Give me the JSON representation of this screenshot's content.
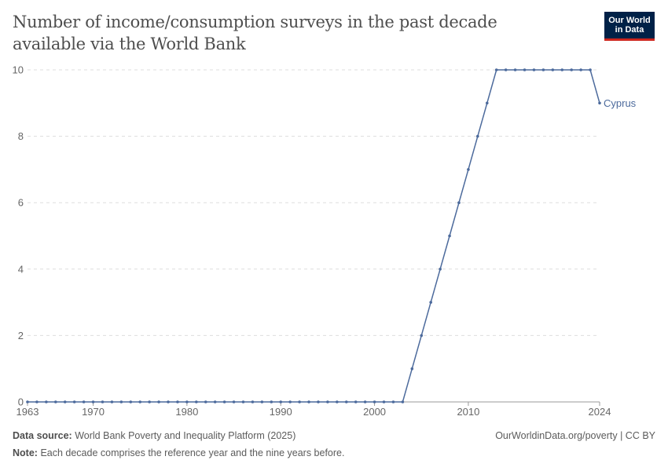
{
  "title": "Number of income/consumption surveys in the past decade available via the World Bank",
  "logo": {
    "line1": "Our World",
    "line2": "in Data"
  },
  "footer": {
    "source_label": "Data source:",
    "source": "World Bank Poverty and Inequality Platform (2025)",
    "url": "OurWorldinData.org/poverty | CC BY",
    "note_label": "Note:",
    "note": "Each decade comprises the reference year and the nine years before."
  },
  "chart_data": {
    "type": "line",
    "title": "Number of income/consumption surveys in the past decade available via the World Bank",
    "xlim": [
      1963,
      2024
    ],
    "ylim": [
      0,
      10
    ],
    "x_ticks": [
      1963,
      1970,
      1980,
      1990,
      2000,
      2010,
      2024
    ],
    "y_ticks": [
      0,
      2,
      4,
      6,
      8,
      10
    ],
    "grid": "horizontal dashed",
    "legend": "right-end label",
    "colors": {
      "Cyprus": "#4c6a9c"
    },
    "series": [
      {
        "name": "Cyprus",
        "x": [
          1963,
          1964,
          1965,
          1966,
          1967,
          1968,
          1969,
          1970,
          1971,
          1972,
          1973,
          1974,
          1975,
          1976,
          1977,
          1978,
          1979,
          1980,
          1981,
          1982,
          1983,
          1984,
          1985,
          1986,
          1987,
          1988,
          1989,
          1990,
          1991,
          1992,
          1993,
          1994,
          1995,
          1996,
          1997,
          1998,
          1999,
          2000,
          2001,
          2002,
          2003,
          2004,
          2005,
          2006,
          2007,
          2008,
          2009,
          2010,
          2011,
          2012,
          2013,
          2014,
          2015,
          2016,
          2017,
          2018,
          2019,
          2020,
          2021,
          2022,
          2023,
          2024
        ],
        "values": [
          0,
          0,
          0,
          0,
          0,
          0,
          0,
          0,
          0,
          0,
          0,
          0,
          0,
          0,
          0,
          0,
          0,
          0,
          0,
          0,
          0,
          0,
          0,
          0,
          0,
          0,
          0,
          0,
          0,
          0,
          0,
          0,
          0,
          0,
          0,
          0,
          0,
          0,
          0,
          0,
          0,
          1,
          2,
          3,
          4,
          5,
          6,
          7,
          8,
          9,
          10,
          10,
          10,
          10,
          10,
          10,
          10,
          10,
          10,
          10,
          10,
          9
        ]
      }
    ]
  }
}
